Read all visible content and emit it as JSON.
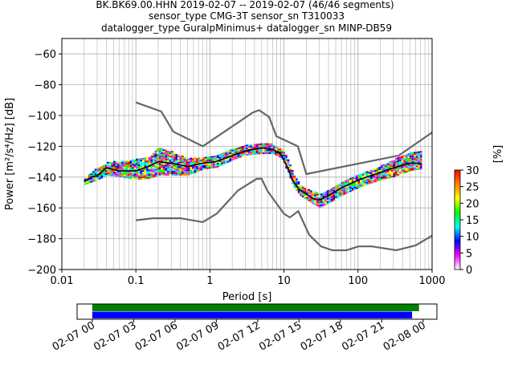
{
  "header": {
    "title_line1": "BK.BK69.00.HHN   2019-02-07 -- 2019-02-07  (46/46 segments)",
    "title_line2": "sensor_type CMG-3T sensor_sn T310033",
    "title_line3": "datalogger_type GuralpMinimus+ datalogger_sn MINP-DB59"
  },
  "chart_data": [
    {
      "type": "heatmap",
      "xlabel": "Period [s]",
      "ylabel": "Power [m²/s⁴/Hz] [dB]",
      "xscale": "log",
      "xlim": [
        0.01,
        1000
      ],
      "ylim": [
        -200,
        -50
      ],
      "grid": true,
      "x_tick_labels": [
        "0.01",
        "0.1",
        "1",
        "10",
        "100",
        "1000"
      ],
      "x_ticks": [
        0.01,
        0.1,
        1,
        10,
        100,
        1000
      ],
      "y_ticks": [
        -200,
        -180,
        -160,
        -140,
        -120,
        -100,
        -80,
        -60
      ],
      "y_tick_labels": [
        "−200",
        "−180",
        "−160",
        "−140",
        "−120",
        "−100",
        "−80",
        "−60"
      ],
      "colorbar": {
        "label": "[%]",
        "ticks": [
          "0",
          "5",
          "10",
          "15",
          "20",
          "25",
          "30"
        ],
        "range": [
          0,
          30
        ],
        "colors": [
          "#ffffff",
          "#ff00ff",
          "#0000ff",
          "#00ffff",
          "#00ff00",
          "#ffff00",
          "#ff8000",
          "#ff0000"
        ]
      },
      "noise_model_color": "#666666",
      "mode_color": "#000000",
      "series": [
        {
          "role": "new_high_noise_model",
          "x": [
            0.1,
            0.22,
            0.32,
            0.8,
            3.8,
            4.6,
            6.3,
            7.9,
            15.4,
            20,
            354.8,
            1000
          ],
          "y": [
            -91.5,
            -97.4,
            -110.5,
            -120,
            -98,
            -96.5,
            -101,
            -113.5,
            -120,
            -138,
            -126,
            -111
          ]
        },
        {
          "role": "new_low_noise_model",
          "x": [
            0.1,
            0.17,
            0.4,
            0.8,
            1.24,
            2.4,
            4.3,
            5,
            6,
            10,
            12,
            15.6,
            21.9,
            31.6,
            45,
            70,
            101,
            154,
            328,
            600,
            1000
          ],
          "y": [
            -168,
            -166.7,
            -166.7,
            -169.2,
            -163.7,
            -148.6,
            -141.1,
            -141.1,
            -149,
            -163.8,
            -166.2,
            -162.1,
            -177.5,
            -185,
            -187.5,
            -187.5,
            -185,
            -185,
            -187.5,
            -184.4,
            -178
          ]
        },
        {
          "role": "mode",
          "x": [
            0.02,
            0.025,
            0.03,
            0.04,
            0.06,
            0.1,
            0.15,
            0.2,
            0.3,
            0.5,
            0.8,
            1.2,
            2,
            3,
            5,
            7,
            9,
            11,
            13,
            16,
            20,
            25,
            30,
            40,
            60,
            100,
            150,
            200,
            300,
            500,
            700
          ],
          "y": [
            -143,
            -140,
            -139,
            -134,
            -136,
            -136,
            -133,
            -130,
            -131,
            -133,
            -131,
            -130,
            -126,
            -123,
            -121,
            -122,
            -125,
            -133,
            -142,
            -148,
            -151,
            -154,
            -155,
            -152,
            -147,
            -142,
            -139,
            -137,
            -134,
            -131,
            -131
          ]
        }
      ],
      "histogram_band": {
        "x": [
          0.02,
          0.03,
          0.04,
          0.06,
          0.1,
          0.15,
          0.2,
          0.3,
          0.5,
          0.8,
          1.2,
          2,
          3,
          5,
          7,
          9,
          11,
          13,
          16,
          20,
          25,
          30,
          40,
          60,
          100,
          150,
          200,
          300,
          500,
          700
        ],
        "low": [
          -145,
          -142,
          -139,
          -140,
          -142,
          -141,
          -139,
          -139,
          -139,
          -135,
          -134,
          -129,
          -126,
          -125,
          -125,
          -128,
          -137,
          -146,
          -152,
          -155,
          -158,
          -160,
          -157,
          -152,
          -147,
          -144,
          -142,
          -140,
          -136,
          -135
        ],
        "high": [
          -141,
          -134,
          -131,
          -130,
          -129,
          -127,
          -121,
          -124,
          -128,
          -128,
          -126,
          -122,
          -119,
          -118,
          -119,
          -122,
          -128,
          -138,
          -145,
          -148,
          -150,
          -151,
          -148,
          -143,
          -138,
          -135,
          -133,
          -129,
          -124,
          -124
        ]
      }
    },
    {
      "type": "bar",
      "role": "data_availability",
      "x_tick_labels": [
        "02-07 00",
        "02-07 03",
        "02-07 06",
        "02-07 09",
        "02-07 12",
        "02-07 15",
        "02-07 18",
        "02-07 21",
        "02-08 00"
      ],
      "x_range_hours": [
        -1.1,
        25
      ],
      "bars": [
        {
          "color": "#008000",
          "start_h": 0,
          "end_h": 23.7
        },
        {
          "color": "#0000ff",
          "start_h": 0,
          "end_h": 23.2
        }
      ]
    }
  ]
}
